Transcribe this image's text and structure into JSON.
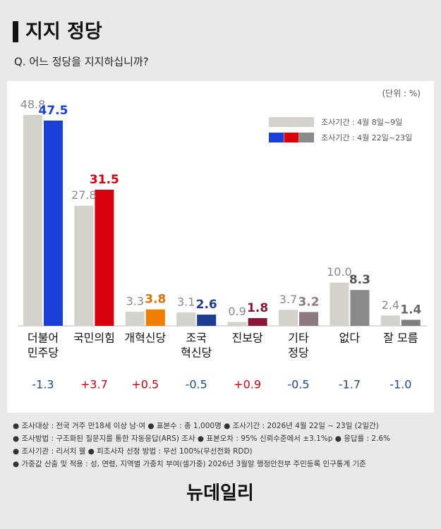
{
  "header": {
    "title": "지지 정당",
    "question": "Q. 어느 정당을 지지하십니까?"
  },
  "chart_data": {
    "type": "bar",
    "unit": "(단위 : %)",
    "categories": [
      [
        "더불어",
        "민주당"
      ],
      [
        "국민의힘"
      ],
      [
        "개혁신당"
      ],
      [
        "조국",
        "혁신당"
      ],
      [
        "진보당"
      ],
      [
        "기타",
        "정당"
      ],
      [
        "없다"
      ],
      [
        "잘 모름"
      ]
    ],
    "series": [
      {
        "name": "조사기간 : 4월 8일~9일",
        "color": "#d3d2cd",
        "label_color": "#8a8a8a",
        "values": [
          48.8,
          27.8,
          3.3,
          3.1,
          0.9,
          3.7,
          10.0,
          2.4
        ],
        "value_labels": [
          "48.8",
          "27.8",
          "3.3",
          "3.1",
          "0.9",
          "3.7",
          "10.0",
          "2.4"
        ]
      },
      {
        "name": "조사기간 : 4월 22일~23일",
        "legend_colors": [
          "#1a3fd6",
          "#d9000d",
          "#8a8a8a"
        ],
        "colors": [
          "#1a3fd6",
          "#d9000d",
          "#f07c00",
          "#1c3d8f",
          "#8a1538",
          "#8c7a80",
          "#8a8a8a",
          "#7f7f7f"
        ],
        "label_colors": [
          "#1a3fd6",
          "#d9000d",
          "#e07000",
          "#1c3d8f",
          "#8a1538",
          "#8c7a80",
          "#555555",
          "#6a6a6a"
        ],
        "values": [
          47.5,
          31.5,
          3.8,
          2.6,
          1.8,
          3.2,
          8.3,
          1.4
        ]
      }
    ],
    "changes": {
      "values": [
        -1.3,
        3.7,
        0.5,
        -0.5,
        0.9,
        -0.5,
        -1.7,
        -1.0
      ],
      "value_labels": [
        "-1.3",
        "+3.7",
        "+0.5",
        "-0.5",
        "+0.9",
        "-0.5",
        "-1.7",
        "-1.0"
      ],
      "positive_color": "#d9000d",
      "negative_color": "#1c4a8a"
    },
    "ylim": [
      0,
      55
    ]
  },
  "footnotes": [
    "● 조사대상 : 전국 거주 만18세 이상 남·여 ● 표본수 : 총 1,000명 ● 조사기간 : 2026년 4월 22일 ~ 23일 (2일간)",
    "● 조사방법 : 구조화된 질문지를 통한 자동응답(ARS) 조사 ● 표본오차 : 95% 신뢰수준에서 ±3.1%p ● 응답률 : 2.6%",
    "● 조사기관 : 리서치 웰 ● 피조사자 선정 방법 : 무선 100%(무선전화 RDD)",
    "● 가중값 산출 및 적용 : 성, 연령, 지역별 가중치 부여(셀가중) 2026년 3월말 행정안전부 주민등록 인구통계 기준"
  ],
  "logo": "뉴데일리"
}
